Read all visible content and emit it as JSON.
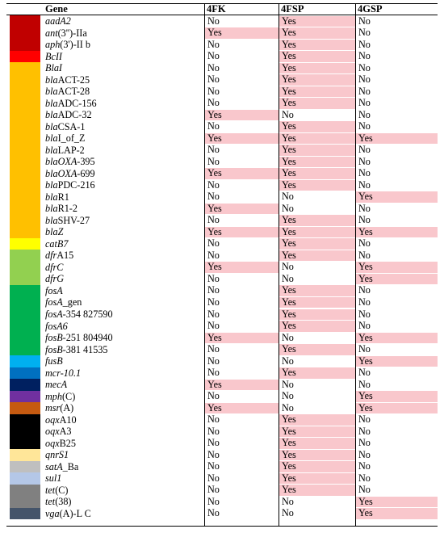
{
  "header": {
    "gene": "Gene",
    "col1": "4FK",
    "col2": "4FSP",
    "col3": "4GSP"
  },
  "rows": [
    {
      "gene_it": "aadA2",
      "gene_rest": "",
      "c": [
        "No",
        "Yes",
        "No"
      ],
      "color": "#c00000"
    },
    {
      "gene_it": "ant",
      "gene_rest": "(3'')-IIa",
      "c": [
        "Yes",
        "Yes",
        "No"
      ],
      "color": "#c00000"
    },
    {
      "gene_it": "aph",
      "gene_rest": "(3')-II b",
      "c": [
        "No",
        "Yes",
        "No"
      ],
      "color": "#c00000"
    },
    {
      "gene_it": "BcII",
      "gene_rest": "",
      "c": [
        "No",
        "Yes",
        "No"
      ],
      "color": "#ff0000"
    },
    {
      "gene_it": "BlaI",
      "gene_rest": "",
      "c": [
        "No",
        "Yes",
        "No"
      ],
      "color": "#ffc000"
    },
    {
      "gene_it": "bla",
      "gene_rest": "ACT-25",
      "c": [
        "No",
        "Yes",
        "No"
      ],
      "color": "#ffc000"
    },
    {
      "gene_it": "bla",
      "gene_rest": "ACT-28",
      "c": [
        "No",
        "Yes",
        "No"
      ],
      "color": "#ffc000"
    },
    {
      "gene_it": "bla",
      "gene_rest": "ADC-156",
      "c": [
        "No",
        "Yes",
        "No"
      ],
      "color": "#ffc000"
    },
    {
      "gene_it": "bla",
      "gene_rest": "ADC-32",
      "c": [
        "Yes",
        "No",
        "No"
      ],
      "color": "#ffc000"
    },
    {
      "gene_it": "bla",
      "gene_rest": "CSA-1",
      "c": [
        "No",
        "Yes",
        "No"
      ],
      "color": "#ffc000"
    },
    {
      "gene_it": "bla",
      "gene_rest": "I_of_Z",
      "c": [
        "Yes",
        "Yes",
        "Yes"
      ],
      "color": "#ffc000"
    },
    {
      "gene_it": "bla",
      "gene_rest": "LAP-2",
      "c": [
        "No",
        "Yes",
        "No"
      ],
      "color": "#ffc000"
    },
    {
      "gene_it": "blaOXA",
      "gene_rest": "-395",
      "c": [
        "No",
        "Yes",
        "No"
      ],
      "color": "#ffc000"
    },
    {
      "gene_it": "blaOXA",
      "gene_rest": "-699",
      "c": [
        "Yes",
        "Yes",
        "No"
      ],
      "color": "#ffc000"
    },
    {
      "gene_it": "bla",
      "gene_rest": "PDC-216",
      "c": [
        "No",
        "Yes",
        "No"
      ],
      "color": "#ffc000"
    },
    {
      "gene_it": "bla",
      "gene_rest": "R1",
      "c": [
        "No",
        "No",
        "Yes"
      ],
      "color": "#ffc000"
    },
    {
      "gene_it": "bla",
      "gene_rest": "R1-2",
      "c": [
        "Yes",
        "No",
        "No"
      ],
      "color": "#ffc000"
    },
    {
      "gene_it": "bla",
      "gene_rest": "SHV-27",
      "c": [
        "No",
        "Yes",
        "No"
      ],
      "color": "#ffc000"
    },
    {
      "gene_it": "blaZ",
      "gene_rest": "",
      "c": [
        "Yes",
        "Yes",
        "Yes"
      ],
      "color": "#ffc000"
    },
    {
      "gene_it": "catB7",
      "gene_rest": "",
      "c": [
        "No",
        "Yes",
        "No"
      ],
      "color": "#ffff00"
    },
    {
      "gene_it": "dfr",
      "gene_rest": "A15",
      "c": [
        "No",
        "Yes",
        "No"
      ],
      "color": "#92d050"
    },
    {
      "gene_it": "dfrC",
      "gene_rest": "",
      "c": [
        "Yes",
        "No",
        "Yes"
      ],
      "color": "#92d050"
    },
    {
      "gene_it": "dfrG",
      "gene_rest": "",
      "c": [
        "No",
        "No",
        "Yes"
      ],
      "color": "#92d050"
    },
    {
      "gene_it": "fosA",
      "gene_rest": "",
      "c": [
        "No",
        "Yes",
        "No"
      ],
      "color": "#00b050"
    },
    {
      "gene_it": "fosA",
      "gene_rest": "_gen",
      "c": [
        "No",
        "Yes",
        "No"
      ],
      "color": "#00b050"
    },
    {
      "gene_it": "fosA",
      "gene_rest": "-354 827590",
      "c": [
        "No",
        "Yes",
        "No"
      ],
      "color": "#00b050"
    },
    {
      "gene_it": "fosA6",
      "gene_rest": "",
      "c": [
        "No",
        "Yes",
        "No"
      ],
      "color": "#00b050"
    },
    {
      "gene_it": "fosB",
      "gene_rest": "-251 804940",
      "c": [
        "Yes",
        "No",
        "Yes"
      ],
      "color": "#00b050"
    },
    {
      "gene_it": "fosB",
      "gene_rest": "-381 41535",
      "c": [
        "No",
        "Yes",
        "No"
      ],
      "color": "#00b050"
    },
    {
      "gene_it": "fusB",
      "gene_rest": "",
      "c": [
        "No",
        "No",
        "Yes"
      ],
      "color": "#00b0f0"
    },
    {
      "gene_it": "mcr-10.1",
      "gene_rest": "",
      "c": [
        "No",
        "Yes",
        "No"
      ],
      "color": "#0070c0"
    },
    {
      "gene_it": "mecA",
      "gene_rest": "",
      "c": [
        "Yes",
        "No",
        "No"
      ],
      "color": "#002060"
    },
    {
      "gene_it": "mph",
      "gene_rest": "(C)",
      "c": [
        "No",
        "No",
        "Yes"
      ],
      "color": "#7030a0"
    },
    {
      "gene_it": "msr",
      "gene_rest": "(A)",
      "c": [
        "Yes",
        "No",
        "Yes"
      ],
      "color": "#c55a11"
    },
    {
      "gene_it": "oqx",
      "gene_rest": "A10",
      "c": [
        "No",
        "Yes",
        "No"
      ],
      "color": "#000000"
    },
    {
      "gene_it": "oqx",
      "gene_rest": "A3",
      "c": [
        "No",
        "Yes",
        "No"
      ],
      "color": "#000000"
    },
    {
      "gene_it": "oqx",
      "gene_rest": "B25",
      "c": [
        "No",
        "Yes",
        "No"
      ],
      "color": "#000000"
    },
    {
      "gene_it": "qnrS1",
      "gene_rest": "",
      "c": [
        "No",
        "Yes",
        "No"
      ],
      "color": "#ffe699"
    },
    {
      "gene_it": "satA",
      "gene_rest": "_Ba",
      "c": [
        "No",
        "Yes",
        "No"
      ],
      "color": "#bfbfbf"
    },
    {
      "gene_it": "sul1",
      "gene_rest": "",
      "c": [
        "No",
        "Yes",
        "No"
      ],
      "color": "#b4c7e7"
    },
    {
      "gene_it": "tet",
      "gene_rest": "(C)",
      "c": [
        "No",
        "Yes",
        "No"
      ],
      "color": "#808080"
    },
    {
      "gene_it": "tet",
      "gene_rest": "(38)",
      "c": [
        "No",
        "No",
        "Yes"
      ],
      "color": "#808080"
    },
    {
      "gene_it": "vga",
      "gene_rest": "(A)-L C",
      "c": [
        "No",
        "No",
        "Yes"
      ],
      "color": "#44546a"
    }
  ]
}
